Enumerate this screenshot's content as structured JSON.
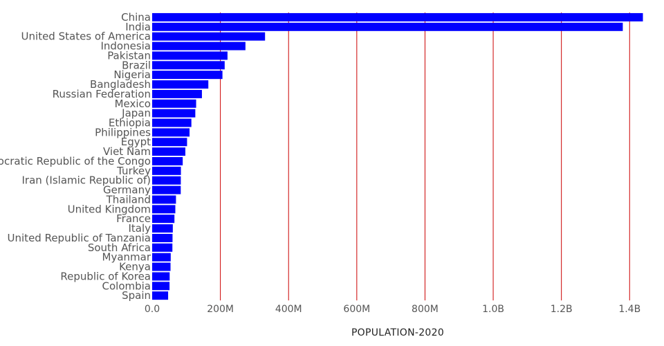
{
  "chart_data": {
    "type": "bar",
    "orientation": "horizontal",
    "categories": [
      "China",
      "India",
      "United States of America",
      "Indonesia",
      "Pakistan",
      "Brazil",
      "Nigeria",
      "Bangladesh",
      "Russian Federation",
      "Mexico",
      "Japan",
      "Ethiopia",
      "Philippines",
      "Egypt",
      "Viet Nam",
      "Democratic Republic of the Congo",
      "Turkey",
      "Iran (Islamic Republic of)",
      "Germany",
      "Thailand",
      "United Kingdom",
      "France",
      "Italy",
      "United Republic of Tanzania",
      "South Africa",
      "Myanmar",
      "Kenya",
      "Republic of Korea",
      "Colombia",
      "Spain"
    ],
    "values": [
      1439000000,
      1380000000,
      331000000,
      273500000,
      220900000,
      212600000,
      206100000,
      164700000,
      145900000,
      128900000,
      126500000,
      115000000,
      109600000,
      102300000,
      97300000,
      89600000,
      84300000,
      84000000,
      83800000,
      69800000,
      67900000,
      65300000,
      60500000,
      59700000,
      59300000,
      54400000,
      53800000,
      51300000,
      50900000,
      46800000
    ],
    "x_ticks": [
      0,
      200000000,
      400000000,
      600000000,
      800000000,
      1000000000,
      1200000000,
      1400000000
    ],
    "x_tick_labels": [
      "0.0",
      "200M",
      "400M",
      "600M",
      "800M",
      "1.0B",
      "1.2B",
      "1.4B"
    ],
    "xlim": [
      0,
      1440000000
    ],
    "xlabel": "POPULATION-2020",
    "ylabel": "",
    "title": "",
    "grid": "vertical",
    "legend": "none",
    "bar_color": "#0000ff",
    "grid_color": "#cc0000"
  }
}
